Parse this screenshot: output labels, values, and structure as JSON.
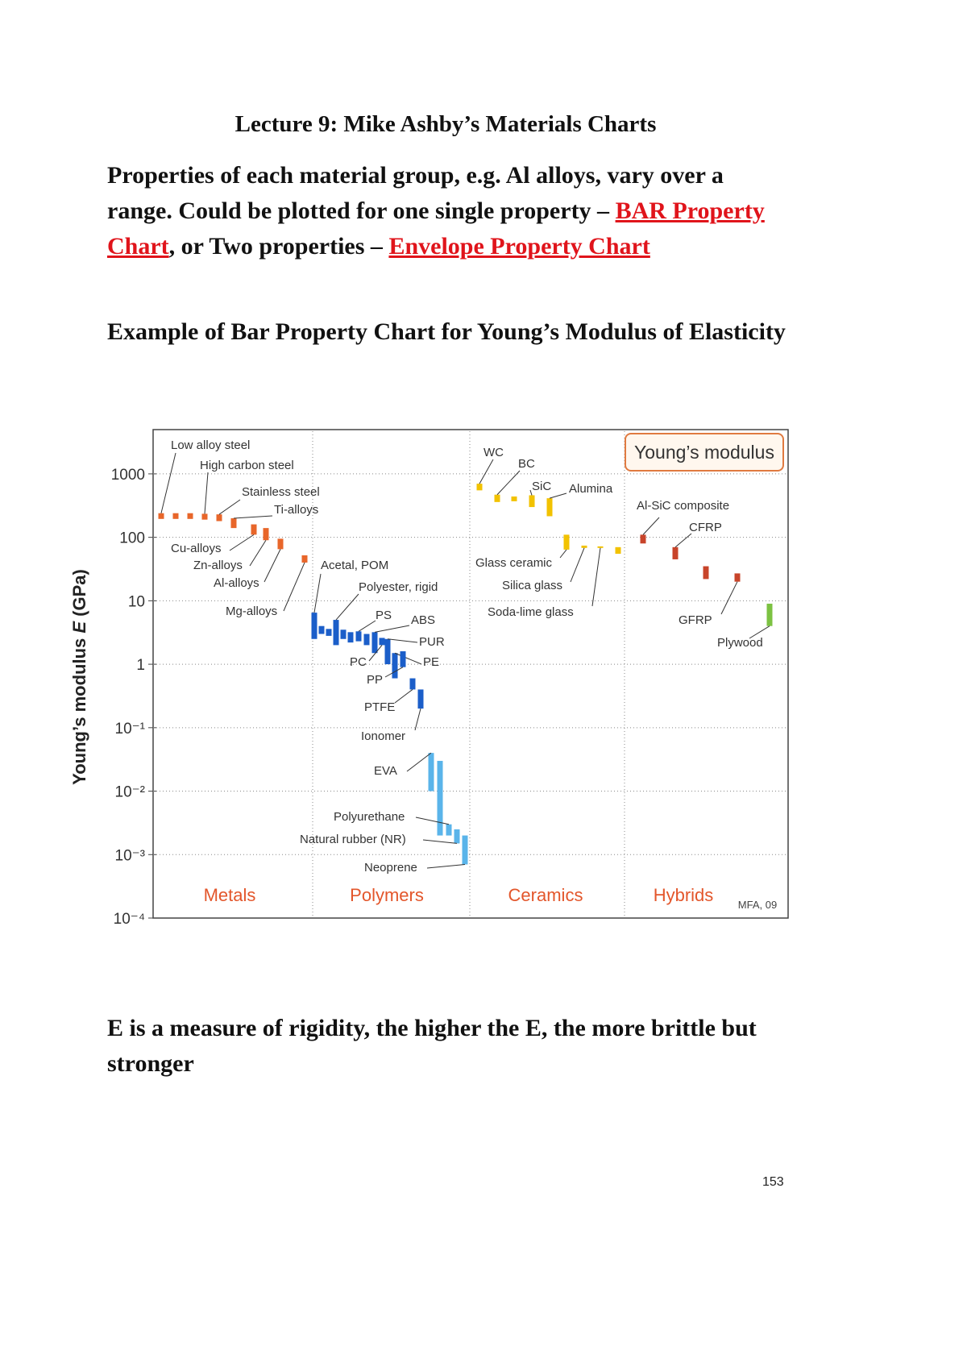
{
  "header": {
    "title": "Lecture 9: Mike Ashby’s Materials Charts"
  },
  "intro": [
    "Properties of each material group, e.g. Al alloys, vary over a range. Could be plotted for one single property – ",
    "BAR Property Chart",
    ", or Two properties – ",
    "Envelope Property Chart"
  ],
  "caption": "Example of Bar Property Chart for Young’s Modulus of Elasticity",
  "chart_data": {
    "type": "range-bar",
    "title": "Young’s modulus",
    "y_label": [
      "Young’s modulus ",
      "E",
      " (GPa)"
    ],
    "credit": "MFA, 09",
    "log_scale": true,
    "grid": true,
    "ylim": [
      0.0001,
      4700
    ],
    "yticks": [
      1000,
      100,
      10,
      1,
      {
        "value": 0.1,
        "label": "10⁻¹"
      },
      {
        "value": 0.01,
        "label": "10⁻²"
      },
      {
        "value": 0.001,
        "label": "10⁻³"
      },
      {
        "value": 0.0001,
        "label": "10⁻⁴"
      }
    ],
    "groups": [
      {
        "name": "Metals",
        "bars": [
          {
            "name": "Low alloy steel",
            "low": 195,
            "high": 240,
            "color": "#e8662a"
          },
          {
            "name": null,
            "low": 195,
            "high": 240,
            "color": "#e8662a"
          },
          {
            "name": null,
            "low": 195,
            "high": 240,
            "color": "#e8662a"
          },
          {
            "name": "High carbon steel",
            "low": 190,
            "high": 235,
            "color": "#e8662a"
          },
          {
            "name": "Stainless steel",
            "low": 180,
            "high": 230,
            "color": "#e8662a"
          },
          {
            "name": "Ti-alloys",
            "low": 140,
            "high": 200,
            "color": "#e8662a"
          },
          {
            "name": "Cu-alloys",
            "low": 110,
            "high": 160,
            "color": "#e8662a"
          },
          {
            "name": "Zn-alloys",
            "low": 90,
            "high": 140,
            "color": "#e8662a"
          },
          {
            "name": "Al-alloys",
            "low": 65,
            "high": 95,
            "color": "#e8662a"
          },
          {
            "name": "Mg-alloys",
            "low": 40,
            "high": 52,
            "color": "#e8662a"
          }
        ]
      },
      {
        "name": "Polymers",
        "bars": [
          {
            "name": "Acetal, POM",
            "low": 2.5,
            "high": 6.5,
            "color": "#1b5ec9"
          },
          {
            "name": null,
            "low": 3,
            "high": 4,
            "color": "#1b5ec9"
          },
          {
            "name": null,
            "low": 2.8,
            "high": 3.6,
            "color": "#1b5ec9"
          },
          {
            "name": "Polyester, rigid",
            "low": 2,
            "high": 5,
            "color": "#1b5ec9"
          },
          {
            "name": null,
            "low": 2.5,
            "high": 3.5,
            "color": "#1b5ec9"
          },
          {
            "name": null,
            "low": 2.2,
            "high": 3.2,
            "color": "#1b5ec9"
          },
          {
            "name": "PS",
            "low": 2.3,
            "high": 3.3,
            "color": "#1b5ec9"
          },
          {
            "name": null,
            "low": 2,
            "high": 3,
            "color": "#1b5ec9"
          },
          {
            "name": "ABS",
            "low": 1.5,
            "high": 3.2,
            "color": "#1b5ec9"
          },
          {
            "name": "PC",
            "low": 2,
            "high": 2.6,
            "color": "#1b5ec9"
          },
          {
            "name": "PUR",
            "low": 1,
            "high": 2.5,
            "color": "#1b5ec9"
          },
          {
            "name": "PE",
            "low": 0.6,
            "high": 1.5,
            "color": "#1b5ec9"
          },
          {
            "name": "PP",
            "low": 0.9,
            "high": 1.6,
            "color": "#1b5ec9"
          },
          {
            "name": "PTFE",
            "low": 0.4,
            "high": 0.6,
            "color": "#1b5ec9"
          },
          {
            "name": "Ionomer",
            "low": 0.2,
            "high": 0.4,
            "color": "#1b5ec9"
          },
          {
            "name": "EVA",
            "low": 0.01,
            "high": 0.04,
            "color": "#5ab4ea"
          },
          {
            "name": null,
            "low": 0.002,
            "high": 0.03,
            "color": "#5ab4ea"
          },
          {
            "name": "Polyurethane",
            "low": 0.002,
            "high": 0.003,
            "color": "#5ab4ea"
          },
          {
            "name": "Natural rubber (NR)",
            "low": 0.0015,
            "high": 0.0025,
            "color": "#5ab4ea"
          },
          {
            "name": "Neoprene",
            "low": 0.0007,
            "high": 0.002,
            "color": "#5ab4ea"
          }
        ]
      },
      {
        "name": "Ceramics",
        "bars": [
          {
            "name": "WC",
            "low": 550,
            "high": 700,
            "color": "#f2c200"
          },
          {
            "name": "BC",
            "low": 360,
            "high": 470,
            "color": "#f2c200"
          },
          {
            "name": null,
            "low": 370,
            "high": 440,
            "color": "#f2c200"
          },
          {
            "name": "SiC",
            "low": 300,
            "high": 460,
            "color": "#f2c200"
          },
          {
            "name": "Alumina",
            "low": 215,
            "high": 413,
            "color": "#f2c200"
          },
          {
            "name": "Glass ceramic",
            "low": 64,
            "high": 110,
            "color": "#f2c200"
          },
          {
            "name": "Silica glass",
            "low": 68,
            "high": 74,
            "color": "#f2c200"
          },
          {
            "name": "Soda-lime glass",
            "low": 68,
            "high": 72,
            "color": "#f2c200"
          },
          {
            "name": null,
            "low": 55,
            "high": 70,
            "color": "#f2c200"
          }
        ]
      },
      {
        "name": "Hybrids",
        "bars": [
          {
            "name": "Al-SiC composite",
            "low": 80,
            "high": 110,
            "color": "#c8442a"
          },
          {
            "name": "CFRP",
            "low": 45,
            "high": 70,
            "color": "#c8442a"
          },
          {
            "name": null,
            "low": 22,
            "high": 35,
            "color": "#c8442a"
          },
          {
            "name": "GFRP",
            "low": 20,
            "high": 27,
            "color": "#c8442a"
          },
          {
            "name": "Plywood",
            "low": 4,
            "high": 9,
            "color": "#7cc242"
          }
        ]
      }
    ]
  },
  "conclusion": "E is a measure of rigidity, the higher the E, the more brittle but stronger",
  "page_number": "153"
}
